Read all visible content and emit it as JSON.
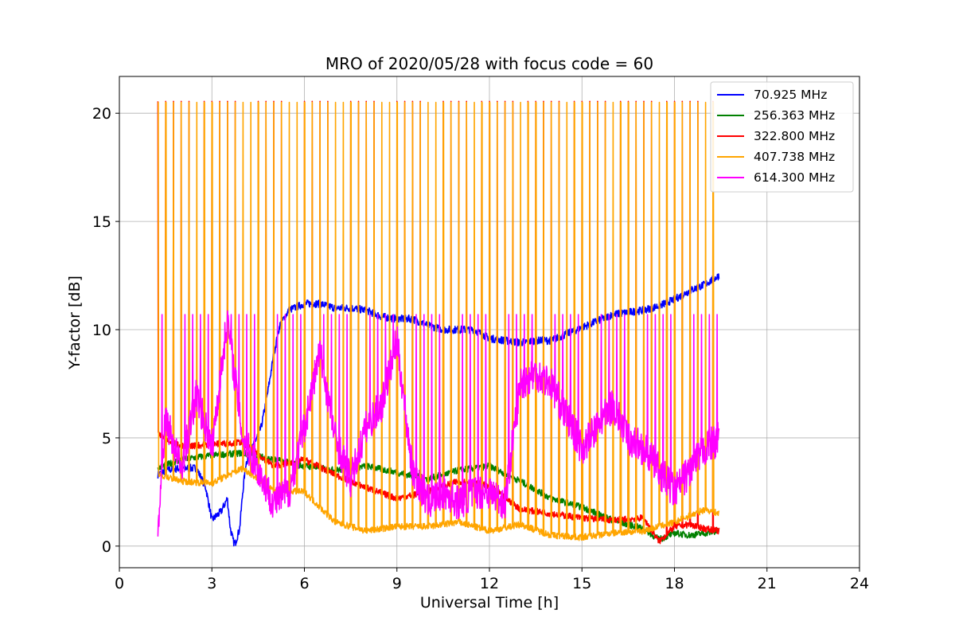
{
  "chart_data": {
    "type": "line",
    "title": "MRO of 2020/05/28 with focus code = 60",
    "xlabel": "Universal Time [h]",
    "ylabel": "Y-factor [dB]",
    "xlim": [
      0,
      24
    ],
    "ylim": [
      -1,
      21.7
    ],
    "xticks": [
      0,
      3,
      6,
      9,
      12,
      15,
      18,
      21,
      24
    ],
    "yticks": [
      0,
      5,
      10,
      15,
      20
    ],
    "grid": true,
    "legend_position": "top-right",
    "sweep": {
      "start_h": 1.25,
      "end_h": 19.45,
      "period_h": 0.25,
      "on_high_dB": 20.5,
      "mid_high_dB": 10.7
    },
    "series": [
      {
        "name": "70.925 MHz",
        "color": "#0000ff",
        "x": [
          1.25,
          1.5,
          2.0,
          2.5,
          2.8,
          3.0,
          3.3,
          3.5,
          3.6,
          3.7,
          3.75,
          3.9,
          4.0,
          4.1,
          4.3,
          4.6,
          4.8,
          5.0,
          5.2,
          5.5,
          6.0,
          6.5,
          7.0,
          7.5,
          8.0,
          8.5,
          9.0,
          9.5,
          10.0,
          10.5,
          11.0,
          11.5,
          12.0,
          12.5,
          13.0,
          13.5,
          14.0,
          14.5,
          15.0,
          15.5,
          16.0,
          16.5,
          17.0,
          17.5,
          18.0,
          18.5,
          19.0,
          19.45
        ],
        "y": [
          3.3,
          3.5,
          3.6,
          3.6,
          2.7,
          1.2,
          1.6,
          2.2,
          0.8,
          0.2,
          0.1,
          0.8,
          2.5,
          3.8,
          4.5,
          5.5,
          7.0,
          8.8,
          10.2,
          10.9,
          11.2,
          11.2,
          11.0,
          11.0,
          10.9,
          10.6,
          10.5,
          10.5,
          10.2,
          10.0,
          10.0,
          10.0,
          9.6,
          9.5,
          9.4,
          9.5,
          9.5,
          9.8,
          10.1,
          10.4,
          10.7,
          10.8,
          10.9,
          11.1,
          11.4,
          11.8,
          12.1,
          12.5
        ]
      },
      {
        "name": "256.363 MHz",
        "color": "#008000",
        "x": [
          1.25,
          2.0,
          3.0,
          4.0,
          5.0,
          6.0,
          7.0,
          8.0,
          9.0,
          10.0,
          11.0,
          12.0,
          13.0,
          14.0,
          15.0,
          16.0,
          17.0,
          17.5,
          18.0,
          18.5,
          19.0,
          19.45
        ],
        "y": [
          3.6,
          4.0,
          4.2,
          4.3,
          4.0,
          3.7,
          3.5,
          3.7,
          3.4,
          3.1,
          3.5,
          3.7,
          3.0,
          2.2,
          1.8,
          1.2,
          0.8,
          0.3,
          0.6,
          0.5,
          0.6,
          0.7
        ]
      },
      {
        "name": "322.800 MHz",
        "color": "#ff0000",
        "x": [
          1.25,
          2.0,
          3.0,
          4.0,
          5.0,
          6.0,
          7.0,
          8.0,
          9.0,
          10.0,
          11.0,
          12.0,
          13.0,
          14.0,
          15.0,
          16.0,
          17.0,
          17.5,
          18.0,
          18.5,
          19.0,
          19.45
        ],
        "y": [
          5.2,
          4.6,
          4.7,
          4.8,
          3.7,
          4.0,
          3.3,
          2.7,
          2.2,
          2.5,
          3.0,
          2.8,
          1.7,
          1.5,
          1.3,
          1.2,
          1.3,
          0.2,
          0.9,
          1.0,
          0.8,
          0.7
        ]
      },
      {
        "name": "407.738 MHz",
        "color": "#ffa500",
        "x": [
          1.25,
          2.0,
          3.0,
          4.0,
          5.0,
          6.0,
          7.0,
          8.0,
          9.0,
          10.0,
          11.0,
          12.0,
          13.0,
          14.0,
          15.0,
          16.0,
          17.0,
          18.0,
          18.5,
          19.0,
          19.45
        ],
        "y": [
          3.3,
          3.0,
          2.9,
          3.6,
          2.6,
          2.5,
          1.1,
          0.7,
          0.9,
          0.9,
          1.1,
          0.7,
          1.0,
          0.5,
          0.4,
          0.6,
          0.7,
          1.1,
          1.4,
          1.7,
          1.5
        ]
      },
      {
        "name": "614.300 MHz",
        "color": "#ff00ff",
        "x": [
          1.25,
          1.5,
          2.0,
          2.5,
          3.0,
          3.5,
          4.0,
          4.5,
          5.0,
          5.5,
          6.0,
          6.5,
          7.0,
          7.5,
          8.0,
          8.5,
          9.0,
          9.5,
          10.0,
          10.5,
          11.0,
          11.5,
          12.0,
          12.5,
          13.0,
          13.5,
          14.0,
          14.5,
          15.0,
          15.5,
          16.0,
          16.5,
          17.0,
          17.5,
          18.0,
          18.5,
          19.0,
          19.45
        ],
        "y": [
          0.7,
          6.0,
          3.5,
          7.0,
          4.5,
          10.5,
          5.0,
          3.5,
          2.0,
          2.5,
          5.5,
          9.0,
          5.0,
          3.0,
          5.5,
          6.5,
          9.5,
          3.5,
          2.0,
          2.5,
          2.0,
          2.5,
          2.5,
          2.0,
          7.5,
          8.0,
          7.5,
          6.0,
          4.5,
          5.5,
          6.5,
          5.0,
          4.5,
          3.5,
          2.5,
          3.5,
          4.5,
          5.0
        ]
      }
    ]
  }
}
